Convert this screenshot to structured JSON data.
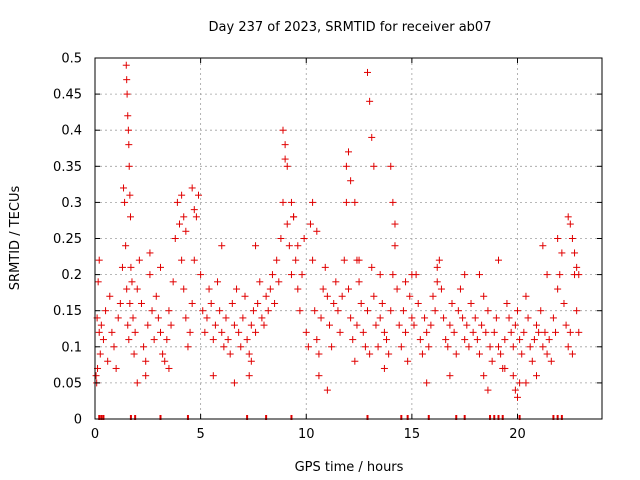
{
  "chart_data": {
    "type": "scatter",
    "title": "Day 237 of 2023, SRMTID for receiver ab07",
    "xlabel": "GPS time / hours",
    "ylabel": "SRMTID / TECUs",
    "xlim": [
      0,
      24
    ],
    "ylim": [
      0,
      0.5
    ],
    "xticks": [
      0,
      5,
      10,
      15,
      20
    ],
    "xtick_labels": [
      "0",
      "5",
      "10",
      "15",
      "20"
    ],
    "yticks": [
      0,
      0.05,
      0.1,
      0.15,
      0.2,
      0.25,
      0.3,
      0.35,
      0.4,
      0.45,
      0.5
    ],
    "ytick_labels": [
      "0",
      "0.05",
      "0.1",
      "0.15",
      "0.2",
      "0.25",
      "0.3",
      "0.35",
      "0.4",
      "0.45",
      "0.5"
    ],
    "grid": true,
    "marker": "+",
    "color": "#e00000",
    "series": [
      {
        "name": "SRMTID",
        "x": [
          0.05,
          0.1,
          0.15,
          0.2,
          0.25,
          0.3,
          0.4,
          0.5,
          0.6,
          0.7,
          0.8,
          0.9,
          1.0,
          1.1,
          1.2,
          1.3,
          1.35,
          1.4,
          1.45,
          1.5,
          1.55,
          1.6,
          1.65,
          1.7,
          1.75,
          1.8,
          1.85,
          1.9,
          2.0,
          2.1,
          2.2,
          2.3,
          2.4,
          2.5,
          2.6,
          2.7,
          2.8,
          2.9,
          3.0,
          3.1,
          3.2,
          3.3,
          3.4,
          3.5,
          3.6,
          3.7,
          3.8,
          3.9,
          4.0,
          4.1,
          4.2,
          4.3,
          4.4,
          4.5,
          4.6,
          4.7,
          4.8,
          4.9,
          5.0,
          5.1,
          5.2,
          5.3,
          5.4,
          5.5,
          5.6,
          5.7,
          5.8,
          5.9,
          6.0,
          6.1,
          6.2,
          6.3,
          6.4,
          6.5,
          6.6,
          6.7,
          6.8,
          6.9,
          7.0,
          7.1,
          7.2,
          7.3,
          7.4,
          7.5,
          7.6,
          7.7,
          7.8,
          7.9,
          8.0,
          8.1,
          8.2,
          8.3,
          8.4,
          8.5,
          8.6,
          8.7,
          8.8,
          8.9,
          9.0,
          9.1,
          9.2,
          9.3,
          9.4,
          9.5,
          9.6,
          9.7,
          9.8,
          9.9,
          10.0,
          10.1,
          10.2,
          10.3,
          10.4,
          10.5,
          10.6,
          10.7,
          10.8,
          10.9,
          11.0,
          11.1,
          11.2,
          11.3,
          11.4,
          11.5,
          11.6,
          11.7,
          11.8,
          11.9,
          12.0,
          12.1,
          12.2,
          12.3,
          12.4,
          12.5,
          12.6,
          12.7,
          12.8,
          12.9,
          13.0,
          13.1,
          13.2,
          13.3,
          13.4,
          13.5,
          13.6,
          13.7,
          13.8,
          13.9,
          14.0,
          14.1,
          14.2,
          14.3,
          14.4,
          14.5,
          14.6,
          14.7,
          14.8,
          14.9,
          15.0,
          15.1,
          15.2,
          15.3,
          15.4,
          15.5,
          15.6,
          15.7,
          15.8,
          15.9,
          16.0,
          16.1,
          16.2,
          16.3,
          16.4,
          16.5,
          16.6,
          16.7,
          16.8,
          16.9,
          17.0,
          17.1,
          17.2,
          17.3,
          17.4,
          17.5,
          17.6,
          17.7,
          17.8,
          17.9,
          18.0,
          18.1,
          18.2,
          18.3,
          18.4,
          18.5,
          18.6,
          18.7,
          18.8,
          18.9,
          19.0,
          19.1,
          19.2,
          19.3,
          19.4,
          19.5,
          19.6,
          19.7,
          19.8,
          19.9,
          20.0,
          20.1,
          20.2,
          20.3,
          20.4,
          20.5,
          20.6,
          20.7,
          20.8,
          20.9,
          21.0,
          21.1,
          21.2,
          21.3,
          21.4,
          21.5,
          21.6,
          21.7,
          21.8,
          21.9,
          22.0,
          22.1,
          22.2,
          22.3,
          22.4,
          22.5,
          22.6,
          22.7,
          22.8,
          22.9,
          1.48,
          1.5,
          1.52,
          1.55,
          1.58,
          1.6,
          1.62,
          1.65,
          1.68,
          4.1,
          4.2,
          4.3,
          4.6,
          4.7,
          8.9,
          9.0,
          9.1,
          9.3,
          9.4,
          10.3,
          10.5,
          11.9,
          12.0,
          12.1,
          12.3,
          12.9,
          13.0,
          13.1,
          13.2,
          14.0,
          14.1,
          14.2,
          22.4,
          22.5,
          22.6,
          22.7,
          22.8,
          19.8,
          19.9,
          20.0,
          20.1,
          0.08,
          0.12,
          2.0,
          2.4,
          3.5,
          5.6,
          6.6,
          7.3,
          7.4,
          10.6,
          11.0,
          13.7,
          15.7,
          16.8,
          18.4,
          18.6,
          19.4,
          20.4,
          20.9,
          21.4,
          21.9,
          0.2,
          2.6,
          3.1,
          6.0,
          7.6,
          9.6,
          12.4,
          12.5,
          13.5,
          14.7,
          15.0,
          16.2,
          17.5,
          18.2,
          19.1,
          21.2,
          22.9
        ],
        "y": [
          0.06,
          0.14,
          0.19,
          0.12,
          0.09,
          0.13,
          0.11,
          0.15,
          0.08,
          0.17,
          0.12,
          0.1,
          0.07,
          0.14,
          0.16,
          0.21,
          0.32,
          0.3,
          0.24,
          0.18,
          0.13,
          0.11,
          0.16,
          0.21,
          0.19,
          0.14,
          0.09,
          0.12,
          0.18,
          0.22,
          0.16,
          0.1,
          0.08,
          0.13,
          0.2,
          0.15,
          0.11,
          0.17,
          0.14,
          0.12,
          0.09,
          0.08,
          0.11,
          0.15,
          0.13,
          0.19,
          0.25,
          0.3,
          0.27,
          0.22,
          0.18,
          0.14,
          0.1,
          0.12,
          0.16,
          0.22,
          0.28,
          0.31,
          0.2,
          0.15,
          0.12,
          0.14,
          0.18,
          0.16,
          0.11,
          0.13,
          0.19,
          0.15,
          0.12,
          0.1,
          0.14,
          0.11,
          0.09,
          0.16,
          0.13,
          0.18,
          0.12,
          0.1,
          0.14,
          0.17,
          0.11,
          0.09,
          0.13,
          0.15,
          0.12,
          0.16,
          0.19,
          0.14,
          0.13,
          0.17,
          0.15,
          0.18,
          0.2,
          0.16,
          0.22,
          0.19,
          0.25,
          0.3,
          0.36,
          0.27,
          0.24,
          0.2,
          0.28,
          0.22,
          0.18,
          0.15,
          0.2,
          0.25,
          0.12,
          0.1,
          0.27,
          0.22,
          0.15,
          0.11,
          0.09,
          0.14,
          0.18,
          0.21,
          0.17,
          0.13,
          0.1,
          0.16,
          0.19,
          0.15,
          0.12,
          0.17,
          0.22,
          0.3,
          0.18,
          0.14,
          0.11,
          0.08,
          0.13,
          0.19,
          0.16,
          0.12,
          0.1,
          0.15,
          0.09,
          0.21,
          0.17,
          0.13,
          0.1,
          0.14,
          0.16,
          0.12,
          0.11,
          0.09,
          0.15,
          0.2,
          0.24,
          0.18,
          0.13,
          0.1,
          0.15,
          0.12,
          0.08,
          0.17,
          0.14,
          0.13,
          0.2,
          0.16,
          0.11,
          0.09,
          0.14,
          0.12,
          0.1,
          0.13,
          0.17,
          0.15,
          0.19,
          0.22,
          0.18,
          0.14,
          0.11,
          0.1,
          0.13,
          0.16,
          0.12,
          0.09,
          0.15,
          0.18,
          0.14,
          0.11,
          0.13,
          0.1,
          0.16,
          0.12,
          0.14,
          0.11,
          0.09,
          0.13,
          0.17,
          0.12,
          0.15,
          0.1,
          0.08,
          0.12,
          0.14,
          0.1,
          0.09,
          0.07,
          0.11,
          0.16,
          0.14,
          0.12,
          0.1,
          0.13,
          0.15,
          0.11,
          0.09,
          0.12,
          0.17,
          0.14,
          0.1,
          0.08,
          0.11,
          0.13,
          0.12,
          0.15,
          0.1,
          0.12,
          0.09,
          0.11,
          0.08,
          0.14,
          0.12,
          0.18,
          0.2,
          0.23,
          0.16,
          0.13,
          0.1,
          0.12,
          0.09,
          0.2,
          0.15,
          0.12,
          0.49,
          0.47,
          0.45,
          0.42,
          0.4,
          0.38,
          0.35,
          0.31,
          0.28,
          0.31,
          0.28,
          0.26,
          0.32,
          0.29,
          0.4,
          0.38,
          0.35,
          0.3,
          0.28,
          0.3,
          0.26,
          0.35,
          0.37,
          0.33,
          0.3,
          0.48,
          0.44,
          0.39,
          0.35,
          0.35,
          0.3,
          0.27,
          0.28,
          0.27,
          0.25,
          0.23,
          0.21,
          0.06,
          0.04,
          0.03,
          0.05,
          0.05,
          0.07,
          0.05,
          0.06,
          0.07,
          0.06,
          0.05,
          0.06,
          0.08,
          0.06,
          0.04,
          0.07,
          0.05,
          0.06,
          0.06,
          0.04,
          0.07,
          0.05,
          0.06,
          0.2,
          0.25,
          0.22,
          0.23,
          0.21,
          0.24,
          0.24,
          0.24,
          0.22,
          0.22,
          0.2,
          0.19,
          0.2,
          0.21,
          0.2,
          0.2,
          0.22,
          0.24,
          0.2
        ],
        "zero_markers_x": [
          0.2,
          0.3,
          0.4,
          1.7,
          1.9,
          3.1,
          4.4,
          7.2,
          8.1,
          9.3,
          12.9,
          14.5,
          14.8,
          15.8,
          17.1,
          17.5,
          18.7,
          18.9,
          19.1,
          19.3,
          20.1,
          21.7,
          21.9,
          22.1
        ]
      }
    ]
  }
}
